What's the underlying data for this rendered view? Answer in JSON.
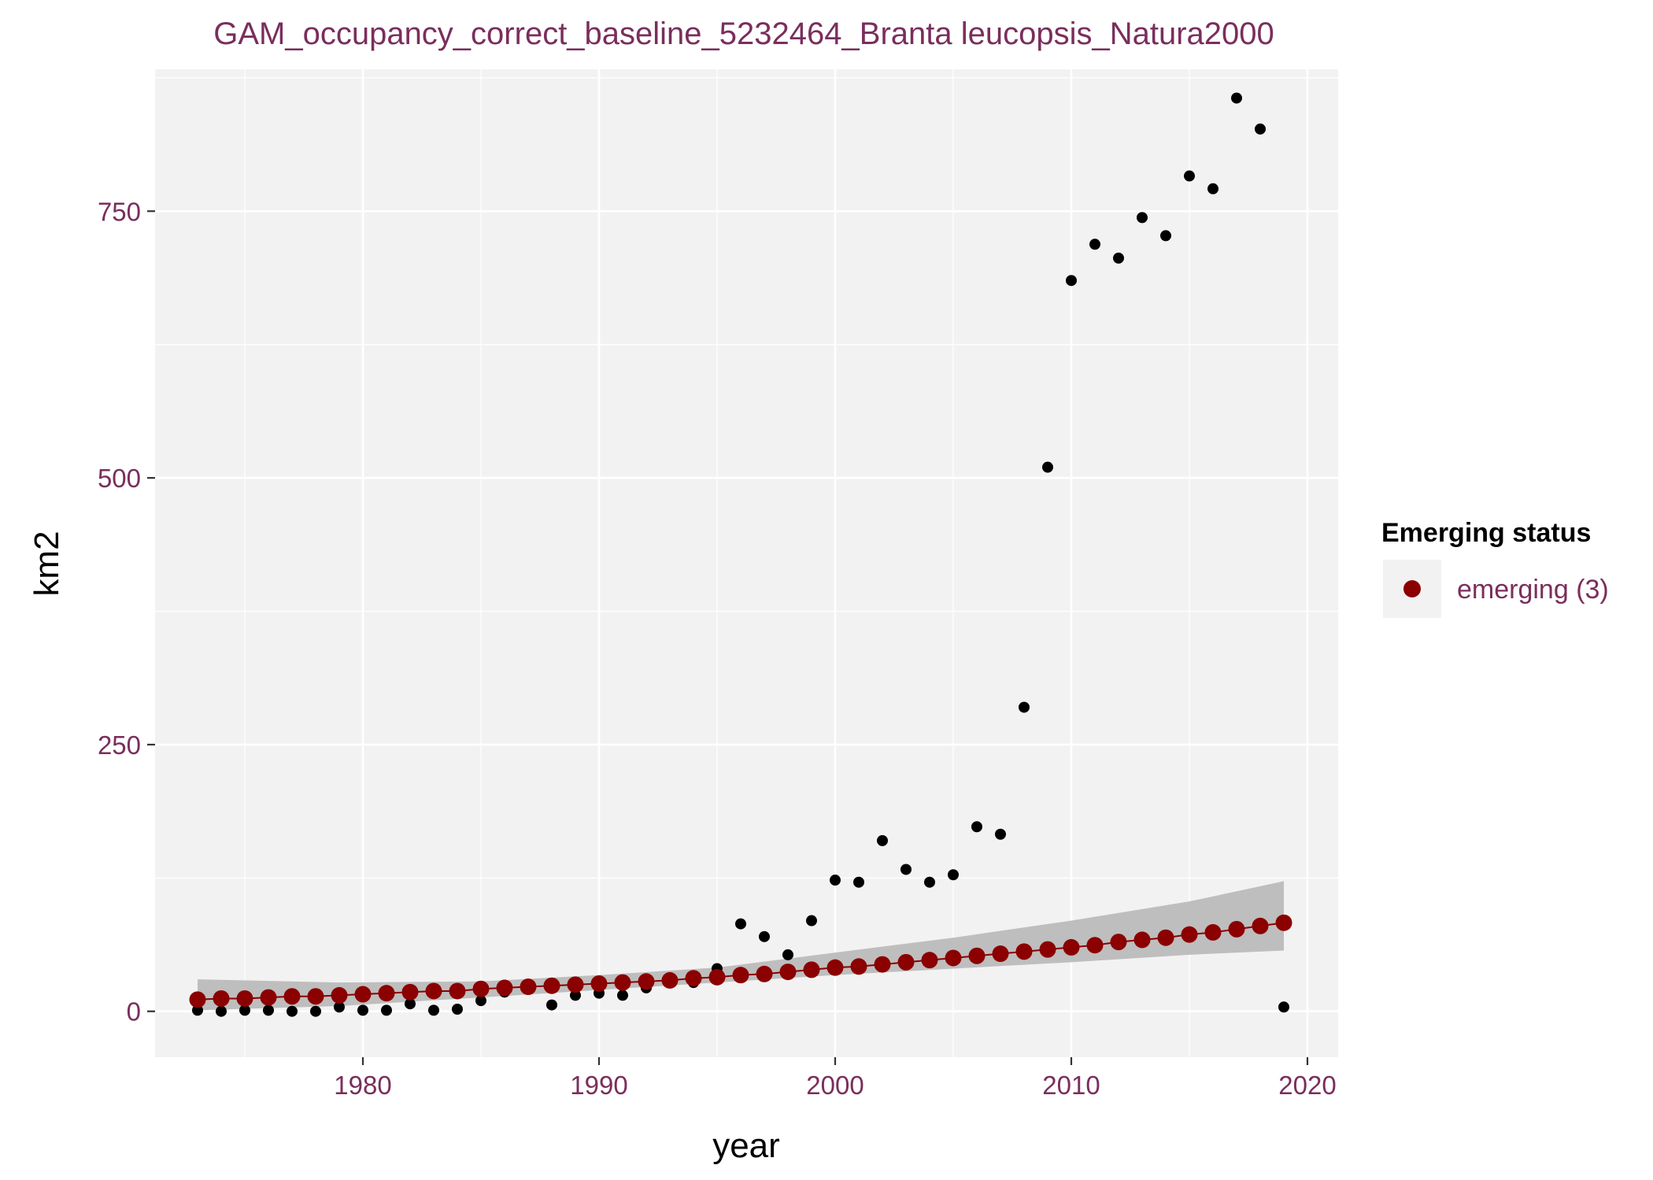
{
  "chart_data": {
    "type": "scatter",
    "title": "GAM_occupancy_correct_baseline_5232464_Branta leucopsis_Natura2000",
    "xlabel": "year",
    "ylabel": "km2",
    "xlim": [
      1971.2,
      2021.3
    ],
    "ylim": [
      -43,
      883
    ],
    "x_ticks": [
      1980,
      1990,
      2000,
      2010,
      2020
    ],
    "y_ticks": [
      0,
      250,
      500,
      750
    ],
    "grid": true,
    "legend": {
      "title": "Emerging status",
      "position": "right",
      "entries": [
        "emerging (3)"
      ]
    },
    "colors": {
      "panel_bg": "#f2f2f2",
      "grid": "#ffffff",
      "observed": "#000000",
      "fitted": "#8b0000",
      "ribbon": "#bebebe",
      "text": "#7a2e5c"
    },
    "observed": {
      "x": [
        1973,
        1974,
        1975,
        1976,
        1977,
        1978,
        1979,
        1980,
        1981,
        1982,
        1983,
        1984,
        1985,
        1986,
        1987,
        1988,
        1989,
        1990,
        1991,
        1992,
        1993,
        1994,
        1995,
        1996,
        1997,
        1998,
        1999,
        2000,
        2001,
        2002,
        2003,
        2004,
        2005,
        2006,
        2007,
        2008,
        2009,
        2010,
        2011,
        2012,
        2013,
        2014,
        2015,
        2016,
        2017,
        2018,
        2019
      ],
      "y": [
        1,
        0,
        1,
        1,
        0,
        0,
        4,
        1,
        1,
        7,
        1,
        2,
        10,
        18,
        22,
        6,
        15,
        17,
        15,
        22,
        27,
        27,
        40,
        82,
        70,
        53,
        85,
        123,
        121,
        160,
        133,
        121,
        128,
        173,
        166,
        285,
        510,
        685,
        719,
        706,
        744,
        727,
        783,
        771,
        856,
        827,
        4
      ]
    },
    "fitted": {
      "name": "emerging (3)",
      "x": [
        1973,
        1974,
        1975,
        1976,
        1977,
        1978,
        1979,
        1980,
        1981,
        1982,
        1983,
        1984,
        1985,
        1986,
        1987,
        1988,
        1989,
        1990,
        1991,
        1992,
        1993,
        1994,
        1995,
        1996,
        1997,
        1998,
        1999,
        2000,
        2001,
        2002,
        2003,
        2004,
        2005,
        2006,
        2007,
        2008,
        2009,
        2010,
        2011,
        2012,
        2013,
        2014,
        2015,
        2016,
        2017,
        2018,
        2019
      ],
      "y": [
        11,
        12,
        12,
        13,
        14,
        14,
        15,
        16,
        17,
        18,
        19,
        19,
        21,
        22,
        23,
        24,
        25,
        26,
        27,
        28,
        29,
        31,
        32,
        34,
        35,
        37,
        39,
        41,
        42,
        44,
        46,
        48,
        50,
        52,
        54,
        56,
        58,
        60,
        62,
        65,
        67,
        69,
        72,
        74,
        77,
        80,
        83
      ]
    },
    "ribbon": {
      "x": [
        1973,
        1979,
        1985,
        1990,
        1995,
        2000,
        2005,
        2010,
        2015,
        2019
      ],
      "lower": [
        1,
        5,
        13,
        20,
        27,
        34,
        40,
        46,
        53,
        57
      ],
      "upper": [
        30,
        27,
        28,
        34,
        41,
        55,
        69,
        85,
        103,
        122
      ]
    }
  }
}
